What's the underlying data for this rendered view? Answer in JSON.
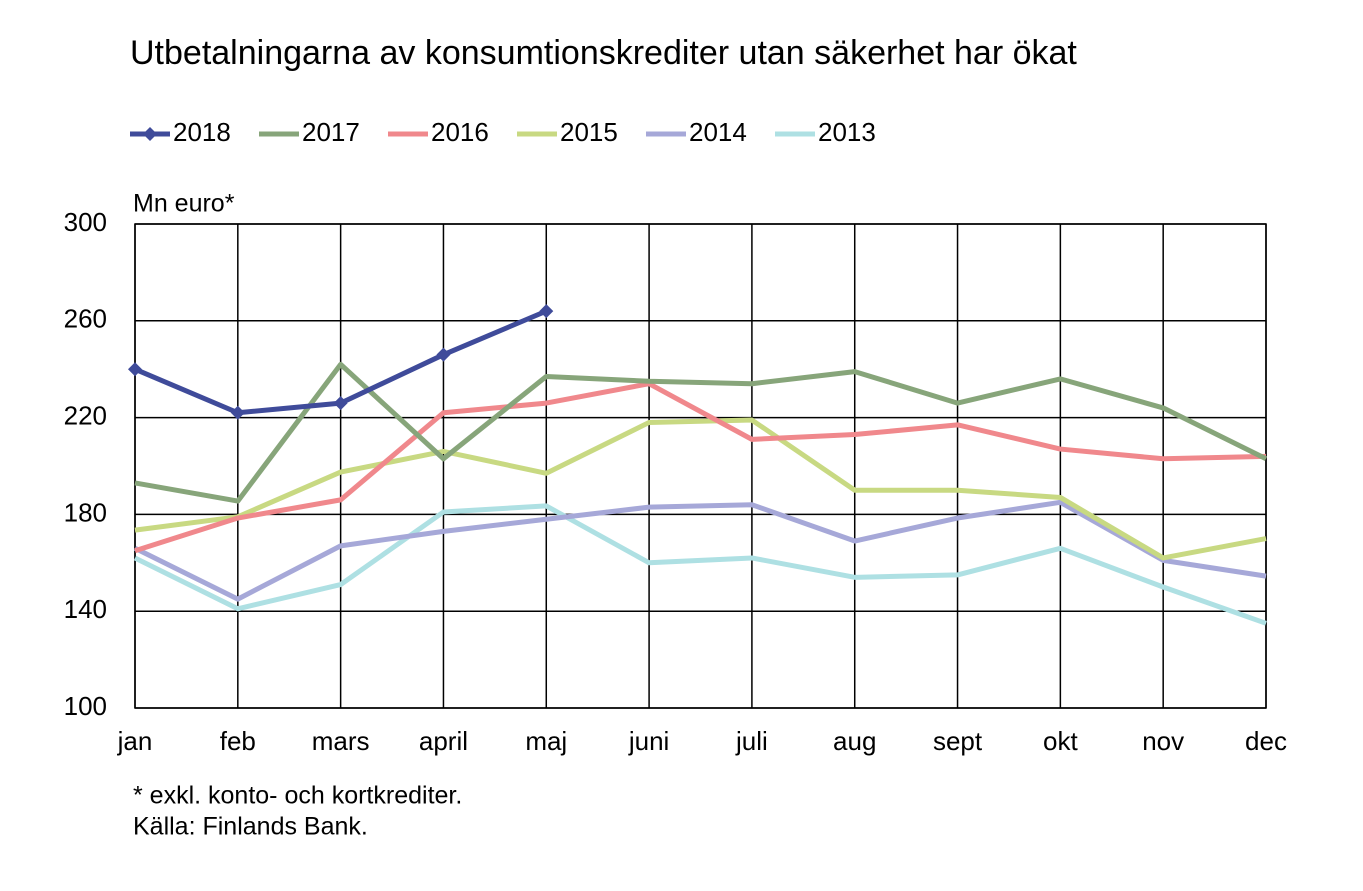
{
  "chart_data": {
    "type": "line",
    "title": "Utbetalningarna av konsumtionskrediter utan säkerhet har ökat",
    "y_label": "Mn euro*",
    "notes": [
      "* exkl. konto- och kortkrediter.",
      "Källa: Finlands Bank."
    ],
    "categories": [
      "jan",
      "feb",
      "mars",
      "april",
      "maj",
      "juni",
      "juli",
      "aug",
      "sept",
      "okt",
      "nov",
      "dec"
    ],
    "ylim": [
      100,
      300
    ],
    "yticks": [
      100,
      140,
      180,
      220,
      260,
      300
    ],
    "grid": true,
    "legend": "top-left",
    "series": [
      {
        "name": "2018",
        "color": "#3f4b9a",
        "marker": "diamond",
        "values": [
          240,
          222,
          226,
          246,
          264,
          null,
          null,
          null,
          null,
          null,
          null,
          null
        ]
      },
      {
        "name": "2017",
        "color": "#87a57a",
        "values": [
          193,
          185.5,
          242,
          203,
          237,
          235,
          234,
          239,
          226,
          236,
          224,
          203
        ]
      },
      {
        "name": "2016",
        "color": "#f0888c",
        "values": [
          165,
          178.5,
          186,
          222,
          226,
          234,
          211,
          213,
          217,
          207,
          203,
          204
        ]
      },
      {
        "name": "2015",
        "color": "#c8d982",
        "values": [
          173.5,
          179,
          197.5,
          206,
          197,
          218,
          219,
          190,
          190,
          187,
          162,
          170
        ]
      },
      {
        "name": "2014",
        "color": "#a6a8d8",
        "values": [
          166,
          145,
          167,
          173,
          178,
          183,
          184,
          169,
          178.5,
          185,
          161,
          154.5
        ]
      },
      {
        "name": "2013",
        "color": "#aee0e3",
        "values": [
          162,
          141,
          151,
          181,
          183.5,
          160,
          162,
          154,
          155,
          166,
          150,
          135
        ]
      }
    ]
  }
}
